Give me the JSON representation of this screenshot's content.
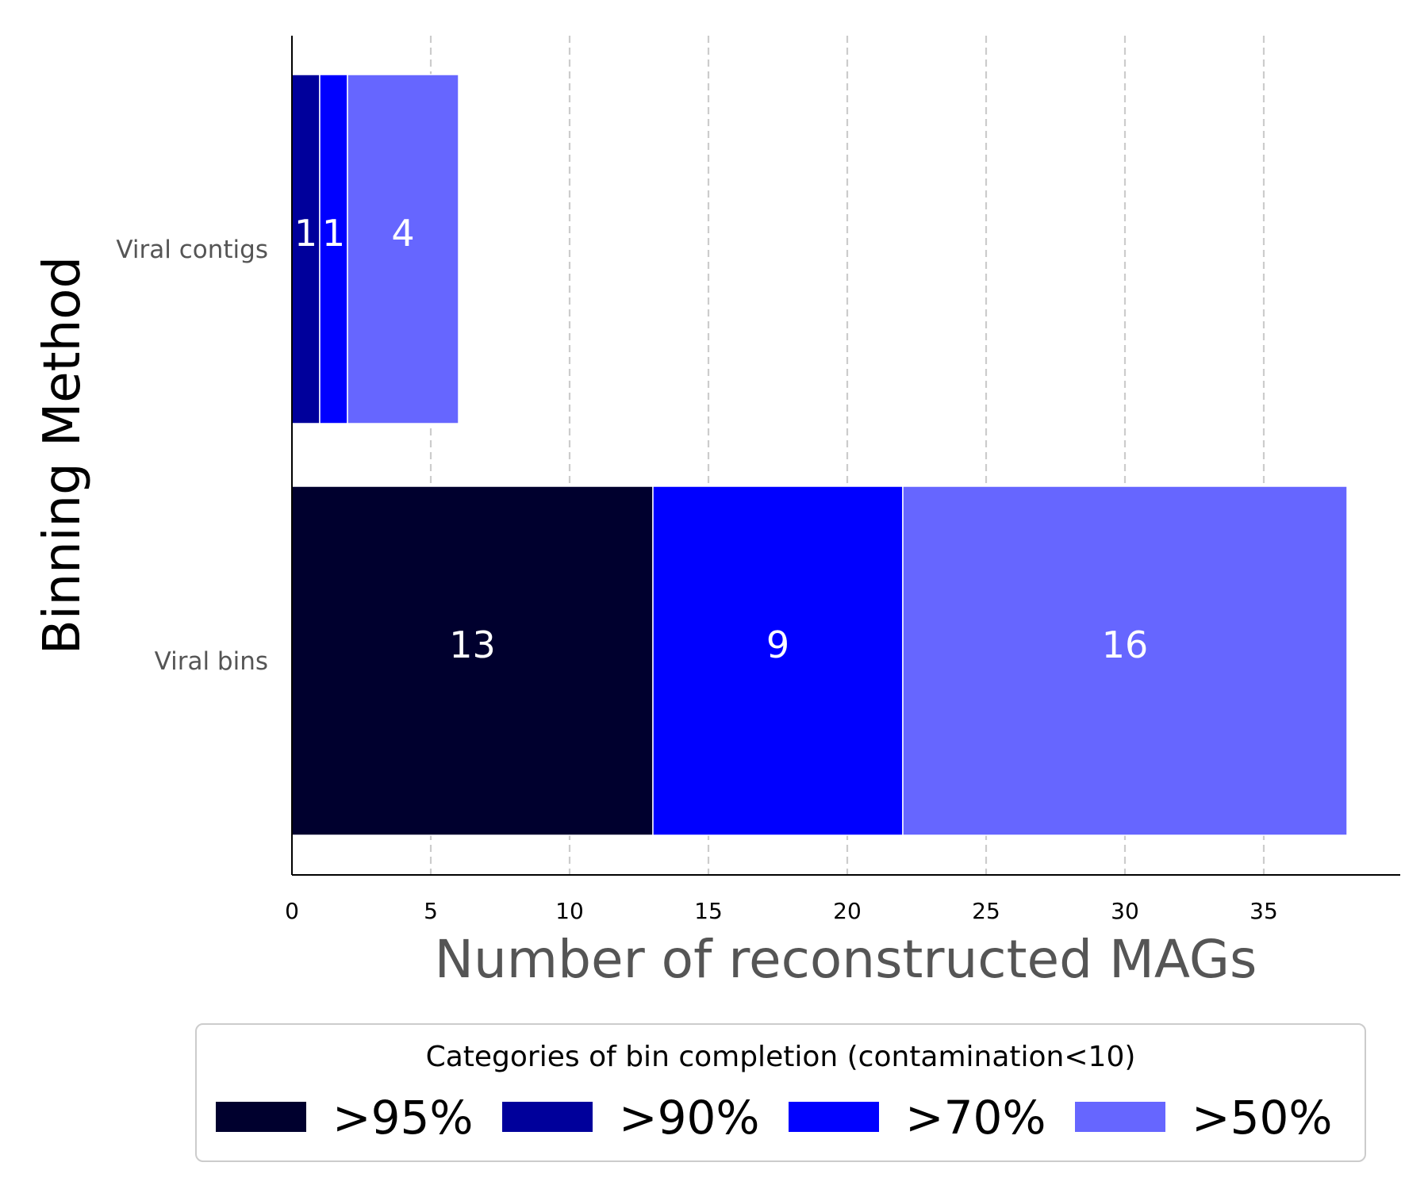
{
  "chart_data": {
    "type": "bar",
    "orientation": "horizontal",
    "stacked": true,
    "categories": [
      "Viral contigs",
      "Viral bins"
    ],
    "series": [
      {
        "name": ">95%",
        "color": "#00002e",
        "values": [
          0,
          13
        ]
      },
      {
        "name": ">90%",
        "color": "#00009b",
        "values": [
          1,
          0
        ]
      },
      {
        "name": ">70%",
        "color": "#0000ff",
        "values": [
          1,
          9
        ]
      },
      {
        "name": ">50%",
        "color": "#6666ff",
        "values": [
          4,
          16
        ]
      }
    ],
    "xlabel": "Number of reconstructed MAGs",
    "ylabel": "Binning Method",
    "xlim": [
      0,
      40
    ],
    "xticks": [
      0,
      5,
      10,
      15,
      20,
      25,
      30,
      35
    ],
    "grid": "x dashed",
    "legend": {
      "title": "Categories of bin completion (contamination<10)",
      "placement": "bottom"
    }
  }
}
